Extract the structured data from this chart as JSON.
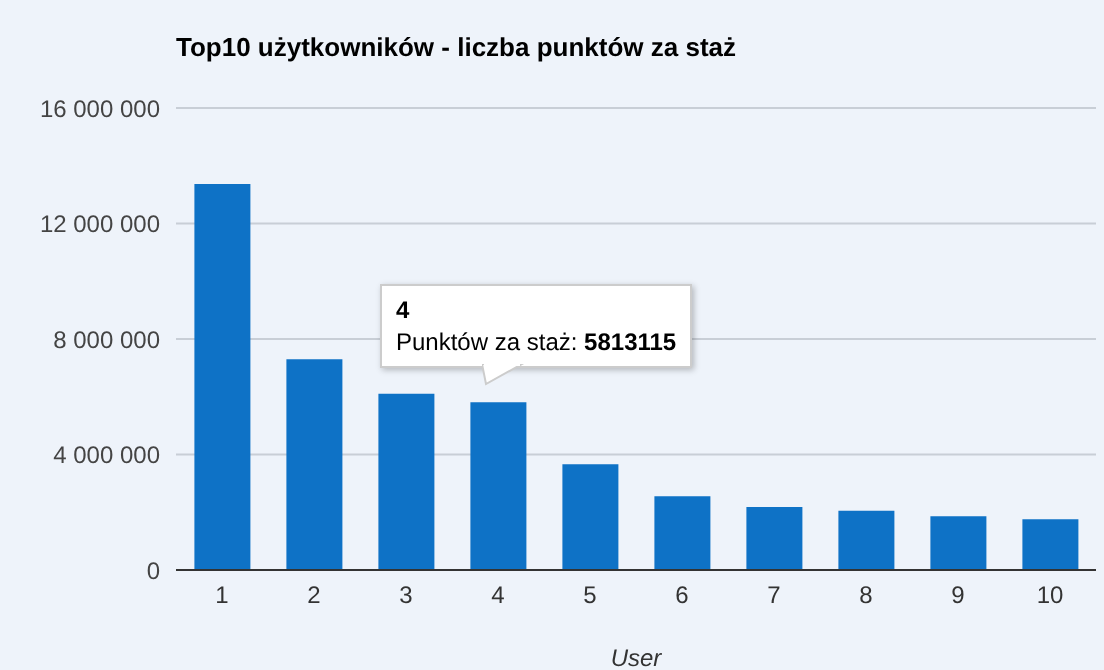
{
  "chart_data": {
    "type": "bar",
    "title": "Top10 użytkowników - liczba punktów za staż",
    "xlabel": "User",
    "categories": [
      "1",
      "2",
      "3",
      "4",
      "5",
      "6",
      "7",
      "8",
      "9",
      "10"
    ],
    "values": [
      13370000,
      7300000,
      6100000,
      5813115,
      3660000,
      2550000,
      2180000,
      2050000,
      1860000,
      1760000
    ],
    "color": "#0e72c6",
    "ylim": [
      0,
      16000000
    ],
    "yticks": [
      {
        "value": 0,
        "label": "0"
      },
      {
        "value": 4000000,
        "label": "4 000 000"
      },
      {
        "value": 8000000,
        "label": "8 000 000"
      },
      {
        "value": 12000000,
        "label": "12 000 000"
      },
      {
        "value": 16000000,
        "label": "16 000 000"
      }
    ],
    "grid": "y",
    "legend": false,
    "annotations": [
      "4",
      "Punktów za staż: 5813115"
    ]
  }
}
